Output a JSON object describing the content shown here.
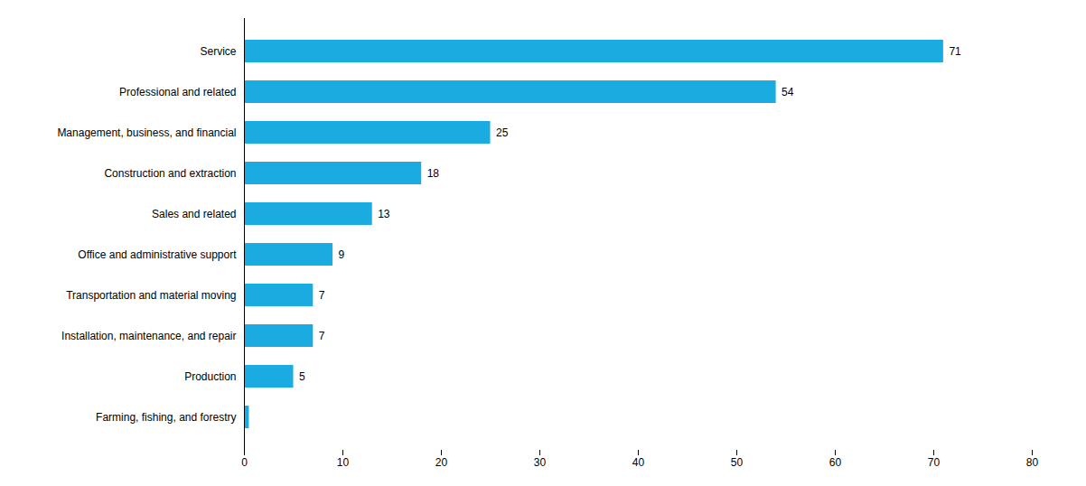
{
  "chart_data": {
    "type": "bar",
    "orientation": "horizontal",
    "categories": [
      "Farming, fishing, and forestry",
      "Production",
      "Installation, maintenance, and repair",
      "Transportation and material moving",
      "Office and administrative support",
      "Sales and related",
      "Construction and extraction",
      "Management, business, and financial",
      "Professional and related",
      "Service"
    ],
    "values": [
      0.5,
      5,
      7,
      7,
      9,
      13,
      18,
      25,
      54,
      71
    ],
    "value_labels": [
      null,
      "5",
      "7",
      "7",
      "9",
      "13",
      "18",
      "25",
      "54",
      "71"
    ],
    "color": "#1aace0",
    "xlim": [
      0,
      80
    ],
    "xticks": [
      0,
      10,
      20,
      30,
      40,
      50,
      60,
      70,
      80
    ],
    "grid": false
  }
}
